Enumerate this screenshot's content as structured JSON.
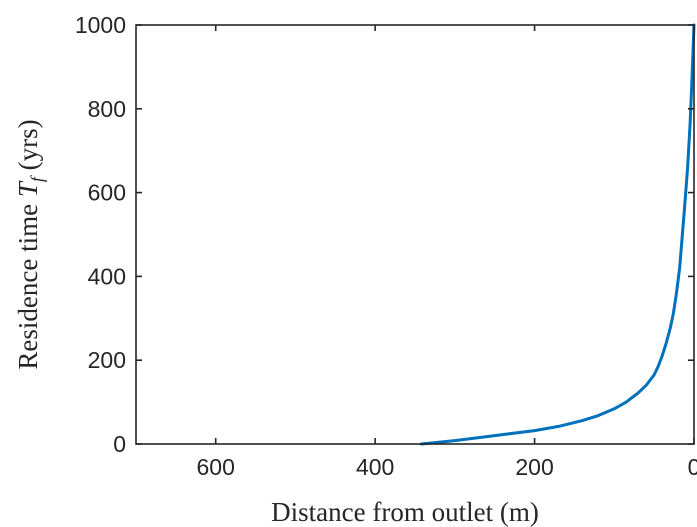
{
  "chart_data": {
    "type": "line",
    "title": "",
    "xlabel": "Distance from outlet (m)",
    "ylabel_prefix": "Residence time ",
    "ylabel_var": "T",
    "ylabel_sub": "f",
    "ylabel_suffix": " (yrs)",
    "xlim": [
      700,
      0
    ],
    "x_reversed": true,
    "ylim": [
      0,
      1000
    ],
    "xticks": [
      600,
      400,
      200,
      0
    ],
    "xtick_labels": [
      "600",
      "400",
      "200",
      "0"
    ],
    "yticks": [
      0,
      200,
      400,
      600,
      800,
      1000
    ],
    "ytick_labels": [
      "0",
      "200",
      "400",
      "600",
      "800",
      "1000"
    ],
    "grid": false,
    "legend": "none",
    "series": [
      {
        "color": "#0072BD",
        "x": [
          342,
          300,
          250,
          200,
          170,
          140,
          120,
          100,
          85,
          70,
          60,
          50,
          45,
          40,
          35,
          30,
          26,
          22,
          18,
          15,
          12,
          8,
          5,
          3,
          1,
          0
        ],
        "y": [
          0,
          8,
          20,
          32,
          42,
          56,
          68,
          84,
          100,
          122,
          140,
          165,
          185,
          210,
          240,
          275,
          310,
          360,
          420,
          490,
          560,
          660,
          760,
          850,
          950,
          1000
        ]
      }
    ]
  }
}
